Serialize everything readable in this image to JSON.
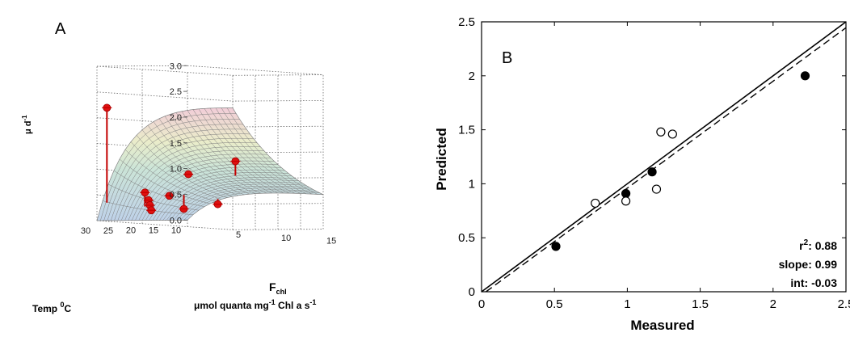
{
  "chart_data": [
    {
      "type": "surface3d",
      "panel_label": "A",
      "zlabel": "μ d",
      "zlabel_sup": "-1",
      "z_ticks": [
        "0.0",
        "0.5",
        "1.0",
        "1.5",
        "2.0",
        "2.5",
        "3.0"
      ],
      "temp_label": "Temp ",
      "temp_label_sup": "0",
      "temp_label_unit": "C",
      "temp_ticks": [
        "30",
        "25",
        "20",
        "15",
        "10"
      ],
      "f_label": "F",
      "f_label_sub": "chl",
      "f_unit": "μmol quanta mg",
      "f_unit_sup": "-1",
      "f_unit_tail": " Chl a s",
      "f_unit_sup2": "-1",
      "f_ticks": [
        "5",
        "10",
        "15"
      ],
      "zlim": [
        0,
        3
      ],
      "observations": [
        {
          "temp": 29.0,
          "fchl": 0.6,
          "mu": 2.2
        },
        {
          "temp": 21.0,
          "fchl": 0.8,
          "mu": 0.55
        },
        {
          "temp": 20.0,
          "fchl": 0.7,
          "mu": 0.4
        },
        {
          "temp": 19.5,
          "fchl": 0.6,
          "mu": 0.3
        },
        {
          "temp": 19.0,
          "fchl": 0.5,
          "mu": 0.2
        },
        {
          "temp": 18.0,
          "fchl": 2.0,
          "mu": 0.5
        },
        {
          "temp": 16.0,
          "fchl": 2.6,
          "mu": 0.25
        },
        {
          "temp": 19.0,
          "fchl": 4.6,
          "mu": 0.95
        },
        {
          "temp": 17.0,
          "fchl": 8.8,
          "mu": 1.25
        },
        {
          "temp": 10.5,
          "fchl": 3.6,
          "mu": 0.35
        }
      ]
    },
    {
      "type": "scatter",
      "panel_label": "B",
      "xlabel": "Measured",
      "ylabel": "Predicted",
      "xlim": [
        0,
        2.5
      ],
      "ylim": [
        0,
        2.5
      ],
      "x_ticks": [
        0,
        0.5,
        1,
        1.5,
        2,
        2.5
      ],
      "y_ticks": [
        0,
        0.5,
        1,
        1.5,
        2,
        2.5
      ],
      "x_tick_labels": [
        "0",
        "0.5",
        "1",
        "1.5",
        "2",
        "2.5"
      ],
      "y_tick_labels": [
        "0",
        "0.5",
        "1",
        "1.5",
        "2",
        "2.5"
      ],
      "series": [
        {
          "marker": "filled",
          "x": [
            0.51,
            0.99,
            1.17,
            2.22
          ],
          "y": [
            0.42,
            0.91,
            1.11,
            2.0
          ]
        },
        {
          "marker": "open",
          "x": [
            0.78,
            0.99,
            1.2,
            1.23,
            1.31
          ],
          "y": [
            0.82,
            0.84,
            0.95,
            1.48,
            1.46
          ]
        }
      ],
      "lines": [
        {
          "style": "solid",
          "slope": 1.0,
          "intercept": 0.0
        },
        {
          "style": "dashed",
          "slope": 0.99,
          "intercept": -0.03
        }
      ],
      "stats": [
        {
          "label": "r",
          "label_sup": "2",
          "suffix": ": ",
          "value": "0.88"
        },
        {
          "label": "slope",
          "label_sup": "",
          "suffix": ": ",
          "value": "0.99"
        },
        {
          "label": "int",
          "label_sup": "",
          "suffix": ": ",
          "value": "-0.03"
        }
      ],
      "grid": false
    }
  ]
}
